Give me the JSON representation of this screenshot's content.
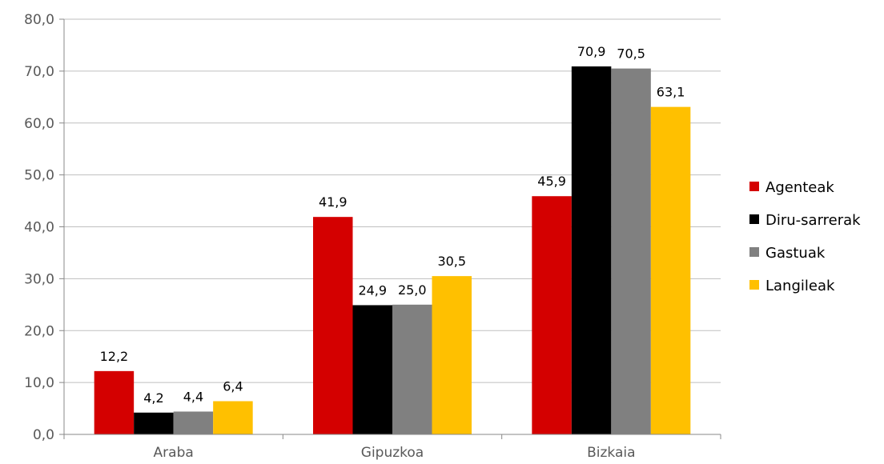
{
  "chart_data": {
    "type": "bar",
    "categories": [
      "Araba",
      "Gipuzkoa",
      "Bizkaia"
    ],
    "series": [
      {
        "name": "Agenteak",
        "color": "#d40000",
        "values": [
          12.2,
          41.9,
          45.9
        ],
        "labels": [
          "12,2",
          "41,9",
          "45,9"
        ]
      },
      {
        "name": "Diru-sarrerak",
        "color": "#000000",
        "values": [
          4.2,
          24.9,
          70.9
        ],
        "labels": [
          "4,2",
          "24,9",
          "70,9"
        ]
      },
      {
        "name": "Gastuak",
        "color": "#808080",
        "values": [
          4.4,
          25.0,
          70.5
        ],
        "labels": [
          "4,4",
          "25,0",
          "70,5"
        ]
      },
      {
        "name": "Langileak",
        "color": "#ffc000",
        "values": [
          6.4,
          30.5,
          63.1
        ],
        "labels": [
          "6,4",
          "30,5",
          "63,1"
        ]
      }
    ],
    "ylim": [
      0,
      80
    ],
    "yticks": [
      "0,0",
      "10,0",
      "20,0",
      "30,0",
      "40,0",
      "50,0",
      "60,0",
      "70,0",
      "80,0"
    ],
    "grid": true,
    "legend_position": "right",
    "title": "",
    "xlabel": "",
    "ylabel": ""
  }
}
